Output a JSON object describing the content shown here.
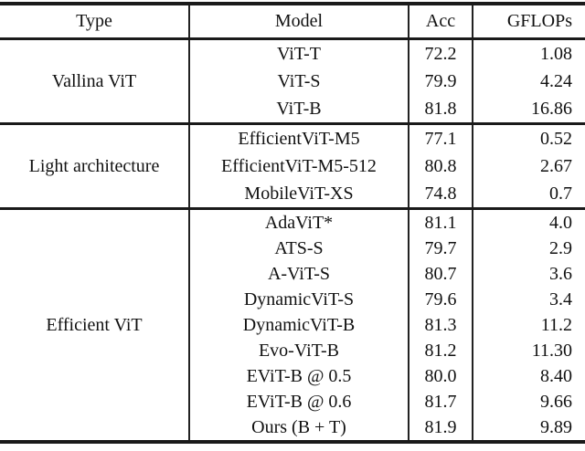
{
  "table": {
    "headers": {
      "type": "Type",
      "model": "Model",
      "acc": "Acc",
      "gflops": "GFLOPs"
    },
    "sections": [
      {
        "type": "Vallina ViT",
        "rows": [
          {
            "model": "ViT-T",
            "acc": "72.2",
            "gflops": "1.08"
          },
          {
            "model": "ViT-S",
            "acc": "79.9",
            "gflops": "4.24"
          },
          {
            "model": "ViT-B",
            "acc": "81.8",
            "gflops": "16.86"
          }
        ]
      },
      {
        "type": "Light architecture",
        "rows": [
          {
            "model": "EfficientViT-M5",
            "acc": "77.1",
            "gflops": "0.52"
          },
          {
            "model": "EfficientViT-M5-512",
            "acc": "80.8",
            "gflops": "2.67"
          },
          {
            "model": "MobileViT-XS",
            "acc": "74.8",
            "gflops": "0.7"
          }
        ]
      },
      {
        "type": "Efficient ViT",
        "rows": [
          {
            "model": "AdaViT*",
            "acc": "81.1",
            "gflops": "4.0"
          },
          {
            "model": "ATS-S",
            "acc": "79.7",
            "gflops": "2.9"
          },
          {
            "model": "A-ViT-S",
            "acc": "80.7",
            "gflops": "3.6"
          },
          {
            "model": "DynamicViT-S",
            "acc": "79.6",
            "gflops": "3.4"
          },
          {
            "model": "DynamicViT-B",
            "acc": "81.3",
            "gflops": "11.2"
          },
          {
            "model": "Evo-ViT-B",
            "acc": "81.2",
            "gflops": "11.30"
          },
          {
            "model": "EViT-B @ 0.5",
            "acc": "80.0",
            "gflops": "8.40"
          },
          {
            "model": "EViT-B @ 0.6",
            "acc": "81.7",
            "gflops": "9.66"
          },
          {
            "model": "Ours (B + T)",
            "acc": "81.9",
            "gflops": "9.89"
          }
        ]
      }
    ],
    "colors": {
      "rule": "#1a1a1a",
      "text": "#111111",
      "background": "#ffffff"
    }
  }
}
